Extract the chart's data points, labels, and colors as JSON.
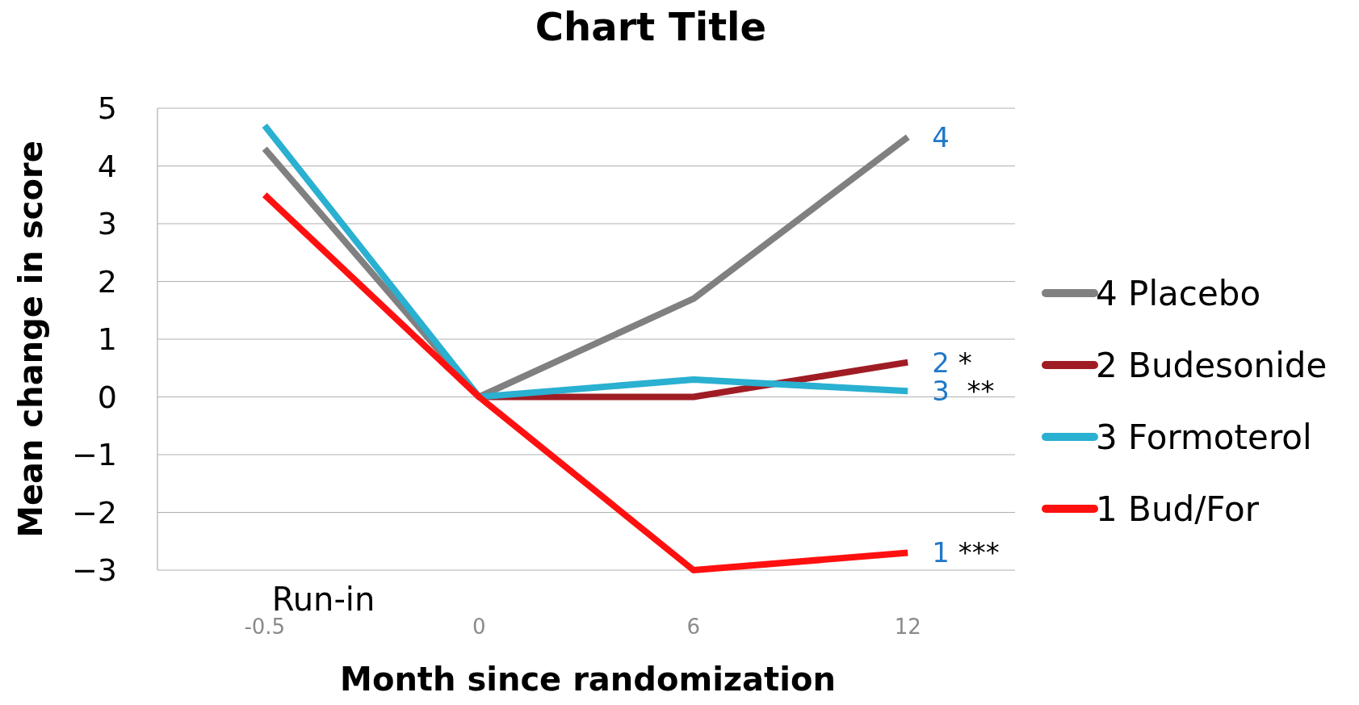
{
  "chart_data": {
    "type": "line",
    "title": "Chart Title",
    "xlabel": "Month since randomization",
    "ylabel": "Mean change in score",
    "categories": [
      "-0.5",
      "0",
      "6",
      "12"
    ],
    "series": [
      {
        "name": "4 Placebo",
        "color": "#808080",
        "values": [
          4.3,
          0,
          1.7,
          4.5
        ]
      },
      {
        "name": "2 Budesonide",
        "color": "#a01c24",
        "values": [
          null,
          0,
          0,
          0.6
        ]
      },
      {
        "name": "3 Formoterol",
        "color": "#2ab0d0",
        "values": [
          4.7,
          0,
          0.3,
          0.1
        ]
      },
      {
        "name": "1 Bud/For",
        "color": "#ff1010",
        "values": [
          3.5,
          0,
          -3,
          -2.7
        ]
      }
    ],
    "ylim": [
      -3,
      5
    ],
    "yticks": [
      {
        "value": -3,
        "label": "−3"
      },
      {
        "value": -2,
        "label": "−2"
      },
      {
        "value": -1,
        "label": "−1"
      },
      0,
      1,
      2,
      3,
      4,
      5
    ],
    "grid": "y",
    "legend": "right",
    "marker": "none",
    "line_style": "solid",
    "annotations": [
      "Run-in",
      {
        "text": "4",
        "x": "12",
        "y": 4.5
      },
      {
        "text": "2 *",
        "x": "12",
        "y": 0.6
      },
      {
        "text": "3  **",
        "x": "12",
        "y": 0.1
      },
      {
        "text": "1 ***",
        "x": "12",
        "y": -2.7
      }
    ]
  }
}
